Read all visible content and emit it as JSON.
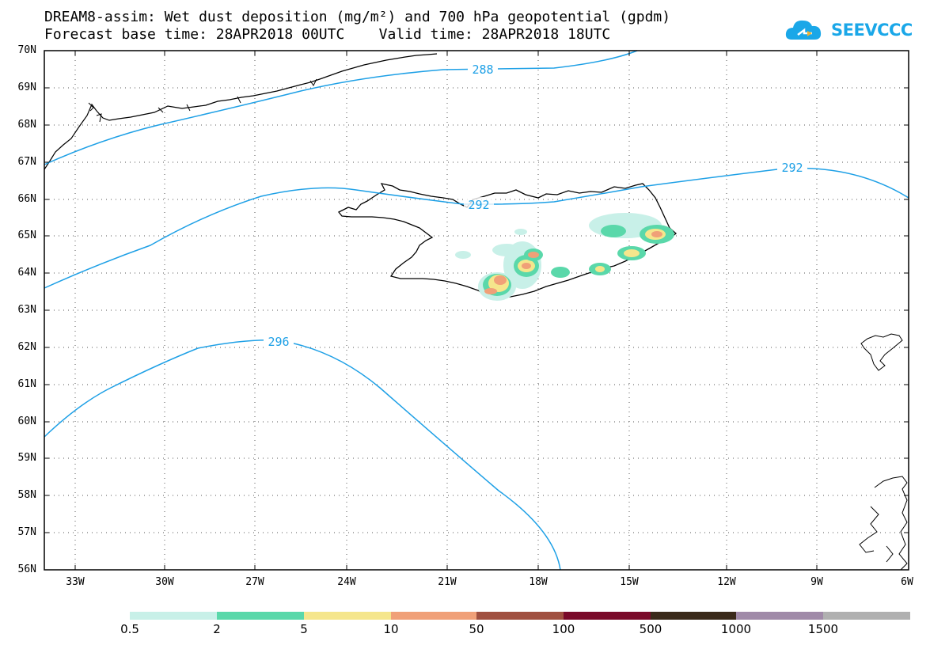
{
  "header": {
    "title_line1": "DREAM8-assim: Wet dust deposition (mg/m²) and 700 hPa geopotential (gpdm)",
    "title_line2": "Forecast base time: 28APR2018 00UTC    Valid time: 28APR2018 18UTC",
    "logo_text": "SEEVCCC"
  },
  "map": {
    "lat_labels": [
      "70N",
      "69N",
      "68N",
      "67N",
      "66N",
      "65N",
      "64N",
      "63N",
      "62N",
      "61N",
      "60N",
      "59N",
      "58N",
      "57N",
      "56N"
    ],
    "lon_labels": [
      "33W",
      "30W",
      "27W",
      "24W",
      "21W",
      "18W",
      "15W",
      "12W",
      "9W",
      "6W"
    ],
    "contour_labels": [
      "288",
      "292",
      "292",
      "296"
    ],
    "contour_color": "#1ea0e6"
  },
  "legend": {
    "labels": [
      "0.5",
      "2",
      "5",
      "10",
      "50",
      "100",
      "500",
      "1000",
      "1500"
    ],
    "colors": [
      "#c8f0e8",
      "#5ad8aa",
      "#f5e68c",
      "#f0a078",
      "#a05040",
      "#7a0a2a",
      "#3a2a1a",
      "#a08aa8",
      "#b0b0b0"
    ]
  }
}
